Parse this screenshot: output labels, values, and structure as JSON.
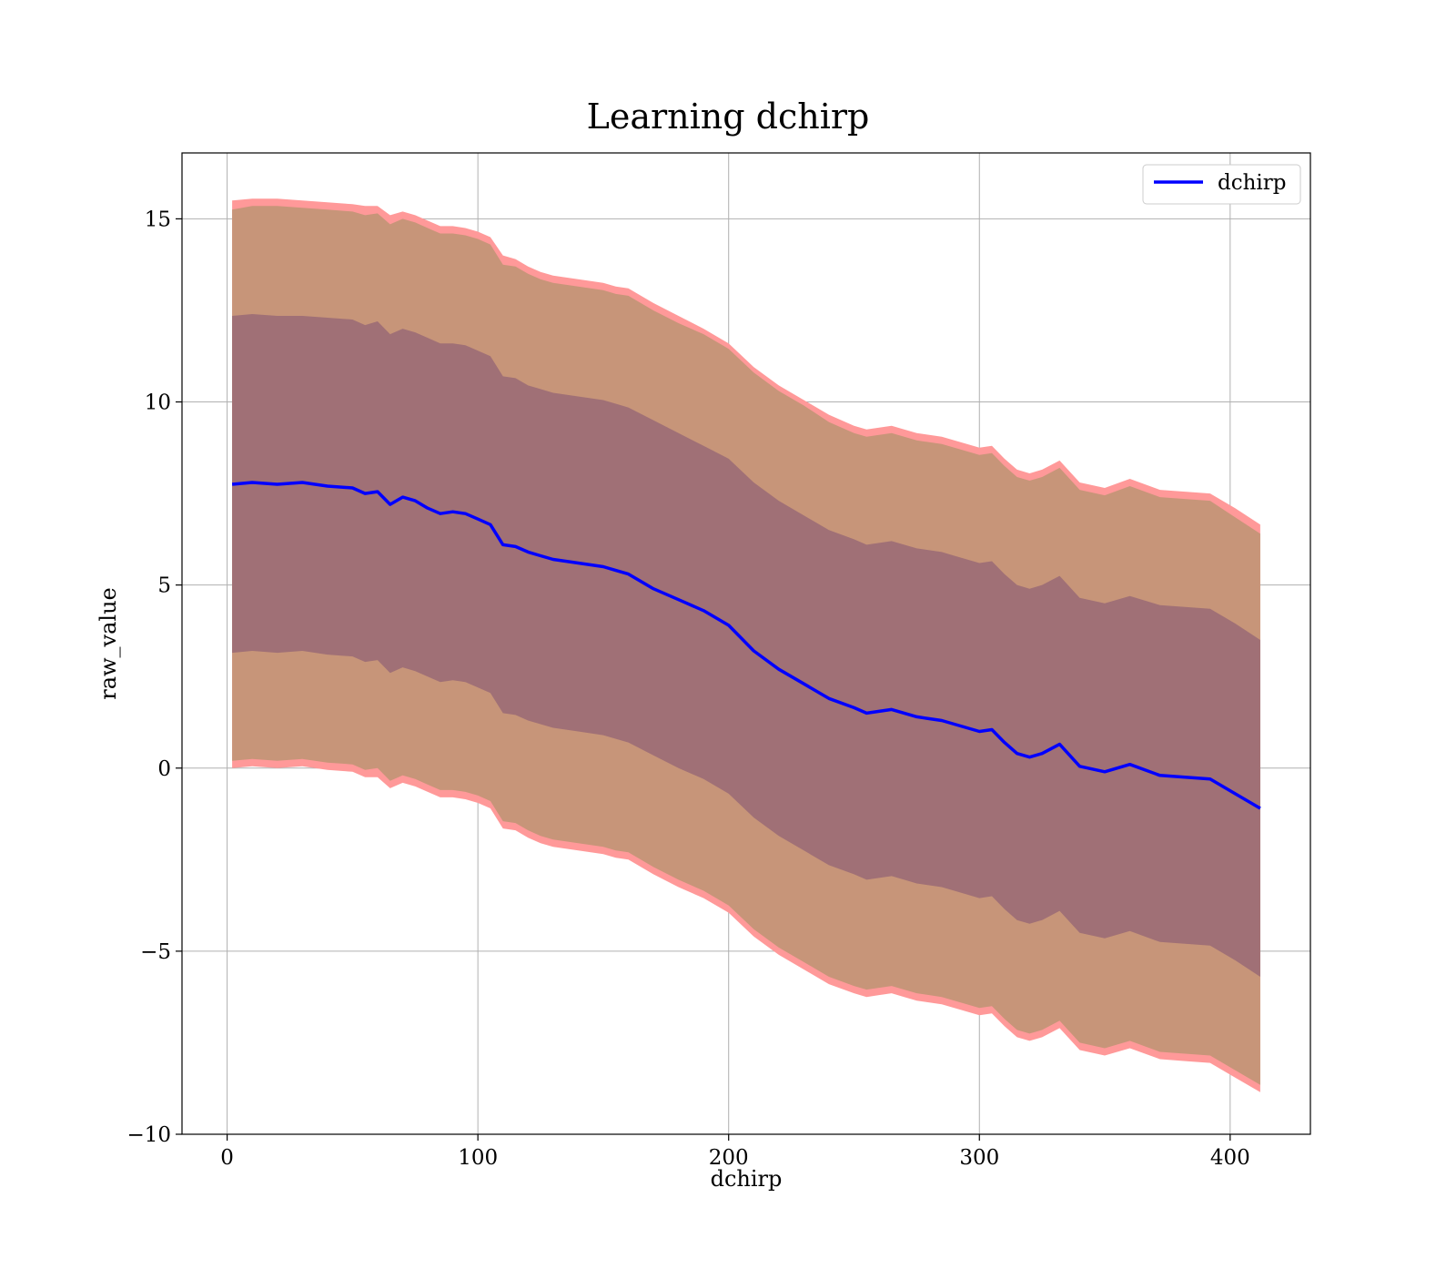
{
  "chart_data": {
    "type": "line",
    "title": "Learning dchirp",
    "xlabel": "dchirp",
    "ylabel": "raw_value",
    "xlim": [
      -18,
      432
    ],
    "ylim": [
      -10,
      16.8
    ],
    "x_ticks": [
      0,
      100,
      200,
      300,
      400
    ],
    "y_ticks": [
      -10,
      -5,
      0,
      5,
      10,
      15
    ],
    "x_tick_labels": [
      "0",
      "100",
      "200",
      "300",
      "400"
    ],
    "y_tick_labels": [
      "−10",
      "−5",
      "0",
      "5",
      "10",
      "15"
    ],
    "grid": true,
    "legend": {
      "position": "top-right",
      "entries": [
        "dchirp"
      ]
    },
    "colors": {
      "line": "#0000ff",
      "band_outer": "#ff9999",
      "band_middle": "#c79579",
      "band_inner": "#a07076"
    },
    "series": [
      {
        "name": "dchirp",
        "x": [
          2,
          10,
          20,
          30,
          40,
          50,
          55,
          60,
          65,
          70,
          75,
          80,
          85,
          90,
          95,
          100,
          105,
          110,
          115,
          120,
          125,
          130,
          140,
          150,
          155,
          160,
          170,
          180,
          190,
          200,
          210,
          220,
          230,
          240,
          250,
          255,
          260,
          265,
          270,
          275,
          280,
          285,
          290,
          300,
          305,
          310,
          315,
          320,
          325,
          332,
          340,
          350,
          360,
          372,
          382,
          392,
          402,
          412
        ],
        "y": [
          7.75,
          7.8,
          7.75,
          7.8,
          7.7,
          7.65,
          7.5,
          7.55,
          7.2,
          7.4,
          7.3,
          7.1,
          6.95,
          7.0,
          6.95,
          6.8,
          6.65,
          6.1,
          6.05,
          5.9,
          5.8,
          5.7,
          5.6,
          5.5,
          5.4,
          5.3,
          4.9,
          4.6,
          4.3,
          3.9,
          3.2,
          2.7,
          2.3,
          1.9,
          1.65,
          1.5,
          1.55,
          1.6,
          1.5,
          1.4,
          1.35,
          1.3,
          1.2,
          1.0,
          1.05,
          0.7,
          0.4,
          0.3,
          0.4,
          0.65,
          0.05,
          -0.1,
          0.1,
          -0.2,
          -0.25,
          -0.3,
          -0.7,
          -1.1
        ],
        "bands": [
          {
            "level": "outer",
            "upper": [
              15.5,
              15.55,
              15.55,
              15.5,
              15.45,
              15.4,
              15.35,
              15.35,
              15.1,
              15.2,
              15.1,
              14.95,
              14.8,
              14.8,
              14.75,
              14.65,
              14.5,
              14.0,
              13.9,
              13.7,
              13.55,
              13.45,
              13.35,
              13.25,
              13.15,
              13.1,
              12.7,
              12.35,
              12.0,
              11.6,
              10.95,
              10.45,
              10.05,
              9.65,
              9.35,
              9.25,
              9.3,
              9.35,
              9.25,
              9.15,
              9.1,
              9.05,
              8.95,
              8.75,
              8.8,
              8.45,
              8.15,
              8.05,
              8.15,
              8.4,
              7.8,
              7.65,
              7.9,
              7.6,
              7.55,
              7.5,
              7.1,
              6.65
            ],
            "lower": [
              0.0,
              0.05,
              0.0,
              0.05,
              -0.05,
              -0.1,
              -0.25,
              -0.25,
              -0.55,
              -0.4,
              -0.5,
              -0.65,
              -0.8,
              -0.8,
              -0.85,
              -0.95,
              -1.1,
              -1.65,
              -1.7,
              -1.9,
              -2.05,
              -2.15,
              -2.25,
              -2.35,
              -2.45,
              -2.5,
              -2.9,
              -3.25,
              -3.55,
              -3.95,
              -4.6,
              -5.1,
              -5.5,
              -5.9,
              -6.15,
              -6.25,
              -6.2,
              -6.15,
              -6.25,
              -6.35,
              -6.4,
              -6.45,
              -6.55,
              -6.75,
              -6.7,
              -7.05,
              -7.35,
              -7.45,
              -7.35,
              -7.1,
              -7.7,
              -7.85,
              -7.65,
              -7.95,
              -8.0,
              -8.05,
              -8.45,
              -8.85
            ]
          },
          {
            "level": "middle",
            "upper": [
              15.25,
              15.35,
              15.35,
              15.3,
              15.25,
              15.2,
              15.1,
              15.15,
              14.85,
              15.0,
              14.9,
              14.75,
              14.6,
              14.6,
              14.55,
              14.45,
              14.3,
              13.75,
              13.7,
              13.5,
              13.35,
              13.25,
              13.15,
              13.05,
              12.95,
              12.9,
              12.5,
              12.15,
              11.85,
              11.45,
              10.8,
              10.3,
              9.9,
              9.45,
              9.15,
              9.05,
              9.1,
              9.15,
              9.05,
              8.95,
              8.9,
              8.85,
              8.75,
              8.55,
              8.6,
              8.25,
              7.95,
              7.85,
              7.95,
              8.2,
              7.6,
              7.45,
              7.7,
              7.4,
              7.35,
              7.3,
              6.85,
              6.4
            ],
            "lower": [
              0.2,
              0.25,
              0.2,
              0.25,
              0.15,
              0.1,
              -0.05,
              0.0,
              -0.35,
              -0.2,
              -0.3,
              -0.45,
              -0.6,
              -0.6,
              -0.65,
              -0.75,
              -0.9,
              -1.45,
              -1.5,
              -1.7,
              -1.85,
              -1.95,
              -2.05,
              -2.15,
              -2.25,
              -2.3,
              -2.7,
              -3.05,
              -3.35,
              -3.75,
              -4.4,
              -4.9,
              -5.3,
              -5.7,
              -5.95,
              -6.05,
              -6.0,
              -5.95,
              -6.05,
              -6.15,
              -6.2,
              -6.25,
              -6.35,
              -6.55,
              -6.5,
              -6.85,
              -7.15,
              -7.25,
              -7.15,
              -6.9,
              -7.5,
              -7.65,
              -7.45,
              -7.75,
              -7.8,
              -7.85,
              -8.25,
              -8.65
            ]
          },
          {
            "level": "inner",
            "upper": [
              12.35,
              12.4,
              12.35,
              12.35,
              12.3,
              12.25,
              12.1,
              12.2,
              11.85,
              12.0,
              11.9,
              11.75,
              11.6,
              11.6,
              11.55,
              11.4,
              11.25,
              10.7,
              10.65,
              10.45,
              10.35,
              10.25,
              10.15,
              10.05,
              9.95,
              9.85,
              9.5,
              9.15,
              8.8,
              8.45,
              7.8,
              7.3,
              6.9,
              6.5,
              6.25,
              6.1,
              6.15,
              6.2,
              6.1,
              6.0,
              5.95,
              5.9,
              5.8,
              5.6,
              5.65,
              5.3,
              5.0,
              4.9,
              5.0,
              5.25,
              4.65,
              4.5,
              4.7,
              4.45,
              4.4,
              4.35,
              3.95,
              3.5
            ],
            "lower": [
              3.15,
              3.2,
              3.15,
              3.2,
              3.1,
              3.05,
              2.9,
              2.95,
              2.6,
              2.75,
              2.65,
              2.5,
              2.35,
              2.4,
              2.35,
              2.2,
              2.05,
              1.5,
              1.45,
              1.3,
              1.2,
              1.1,
              1.0,
              0.9,
              0.8,
              0.7,
              0.35,
              0.0,
              -0.3,
              -0.7,
              -1.35,
              -1.85,
              -2.25,
              -2.65,
              -2.9,
              -3.05,
              -3.0,
              -2.95,
              -3.05,
              -3.15,
              -3.2,
              -3.25,
              -3.35,
              -3.55,
              -3.5,
              -3.85,
              -4.15,
              -4.25,
              -4.15,
              -3.9,
              -4.5,
              -4.65,
              -4.45,
              -4.75,
              -4.8,
              -4.85,
              -5.25,
              -5.7
            ]
          }
        ]
      }
    ]
  }
}
